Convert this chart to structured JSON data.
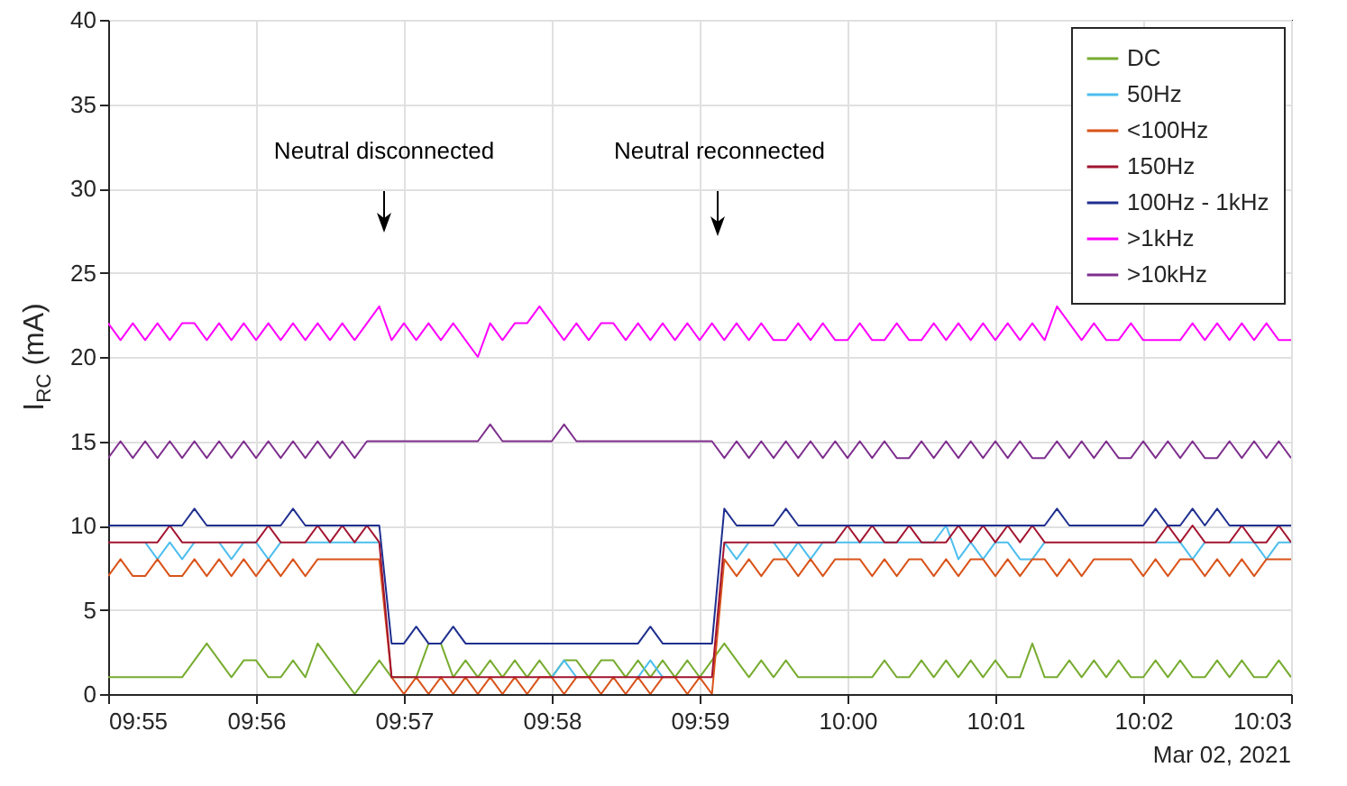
{
  "chart_data": {
    "type": "line",
    "ylabel": "I$_{RC}$ (mA)",
    "x": [
      "2021-03-02T09:55:00",
      "2021-03-02T09:55:05",
      "2021-03-02T09:55:10",
      "2021-03-02T09:55:15",
      "2021-03-02T09:55:20",
      "2021-03-02T09:55:25",
      "2021-03-02T09:55:30",
      "2021-03-02T09:55:35",
      "2021-03-02T09:55:40",
      "2021-03-02T09:55:45",
      "2021-03-02T09:55:50",
      "2021-03-02T09:55:55",
      "2021-03-02T09:56:00",
      "2021-03-02T09:56:05",
      "2021-03-02T09:56:10",
      "2021-03-02T09:56:15",
      "2021-03-02T09:56:20",
      "2021-03-02T09:56:25",
      "2021-03-02T09:56:30",
      "2021-03-02T09:56:35",
      "2021-03-02T09:56:40",
      "2021-03-02T09:56:45",
      "2021-03-02T09:56:50",
      "2021-03-02T09:56:55",
      "2021-03-02T09:57:00",
      "2021-03-02T09:57:05",
      "2021-03-02T09:57:10",
      "2021-03-02T09:57:15",
      "2021-03-02T09:57:20",
      "2021-03-02T09:57:25",
      "2021-03-02T09:57:30",
      "2021-03-02T09:57:35",
      "2021-03-02T09:57:40",
      "2021-03-02T09:57:45",
      "2021-03-02T09:57:50",
      "2021-03-02T09:57:55",
      "2021-03-02T09:58:00",
      "2021-03-02T09:58:05",
      "2021-03-02T09:58:10",
      "2021-03-02T09:58:15",
      "2021-03-02T09:58:20",
      "2021-03-02T09:58:25",
      "2021-03-02T09:58:30",
      "2021-03-02T09:58:35",
      "2021-03-02T09:58:40",
      "2021-03-02T09:58:45",
      "2021-03-02T09:58:50",
      "2021-03-02T09:58:55",
      "2021-03-02T09:59:00",
      "2021-03-02T09:59:05",
      "2021-03-02T09:59:10",
      "2021-03-02T09:59:15",
      "2021-03-02T09:59:20",
      "2021-03-02T09:59:25",
      "2021-03-02T09:59:30",
      "2021-03-02T09:59:35",
      "2021-03-02T09:59:40",
      "2021-03-02T09:59:45",
      "2021-03-02T09:59:50",
      "2021-03-02T09:59:55",
      "2021-03-02T10:00:00",
      "2021-03-02T10:00:05",
      "2021-03-02T10:00:10",
      "2021-03-02T10:00:15",
      "2021-03-02T10:00:20",
      "2021-03-02T10:00:25",
      "2021-03-02T10:00:30",
      "2021-03-02T10:00:35",
      "2021-03-02T10:00:40",
      "2021-03-02T10:00:45",
      "2021-03-02T10:00:50",
      "2021-03-02T10:00:55",
      "2021-03-02T10:01:00",
      "2021-03-02T10:01:05",
      "2021-03-02T10:01:10",
      "2021-03-02T10:01:15",
      "2021-03-02T10:01:20",
      "2021-03-02T10:01:25",
      "2021-03-02T10:01:30",
      "2021-03-02T10:01:35",
      "2021-03-02T10:01:40",
      "2021-03-02T10:01:45",
      "2021-03-02T10:01:50",
      "2021-03-02T10:01:55",
      "2021-03-02T10:02:00",
      "2021-03-02T10:02:05",
      "2021-03-02T10:02:10",
      "2021-03-02T10:02:15",
      "2021-03-02T10:02:20",
      "2021-03-02T10:02:25",
      "2021-03-02T10:02:30",
      "2021-03-02T10:02:35",
      "2021-03-02T10:02:40",
      "2021-03-02T10:02:45",
      "2021-03-02T10:02:50",
      "2021-03-02T10:02:55",
      "2021-03-02T10:03:00"
    ],
    "series": [
      {
        "name": "DC",
        "color": "#77ac30",
        "values": [
          1,
          1,
          1,
          1,
          1,
          1,
          1,
          2,
          3,
          2,
          1,
          2,
          2,
          1,
          1,
          2,
          1,
          3,
          2,
          1,
          0,
          1,
          2,
          1,
          1,
          1,
          3,
          3,
          1,
          2,
          1,
          2,
          1,
          2,
          1,
          2,
          1,
          2,
          2,
          1,
          2,
          2,
          1,
          2,
          1,
          2,
          1,
          2,
          1,
          2,
          3,
          2,
          1,
          2,
          1,
          2,
          1,
          1,
          1,
          1,
          1,
          1,
          1,
          2,
          1,
          1,
          2,
          1,
          2,
          1,
          2,
          1,
          2,
          1,
          1,
          3,
          1,
          1,
          2,
          1,
          2,
          1,
          2,
          1,
          1,
          2,
          1,
          2,
          1,
          1,
          2,
          1,
          2,
          1,
          1,
          2,
          1
        ]
      },
      {
        "name": "50Hz",
        "color": "#4dbeee",
        "values": [
          null,
          null,
          null,
          9,
          8,
          9,
          8,
          9,
          null,
          9,
          8,
          9,
          9,
          8,
          9,
          null,
          9,
          9,
          9,
          9,
          9,
          9,
          9,
          null,
          null,
          null,
          null,
          null,
          null,
          null,
          null,
          null,
          null,
          null,
          null,
          null,
          1,
          2,
          1,
          null,
          null,
          null,
          null,
          1,
          2,
          1,
          null,
          null,
          null,
          null,
          9,
          8,
          9,
          null,
          9,
          8,
          9,
          8,
          9,
          9,
          9,
          9,
          9,
          9,
          9,
          9,
          9,
          9,
          10,
          8,
          9,
          8,
          9,
          9,
          8,
          8,
          9,
          null,
          null,
          null,
          null,
          null,
          null,
          null,
          null,
          9,
          9,
          9,
          8,
          9,
          null,
          9,
          9,
          9,
          8,
          9,
          9
        ]
      },
      {
        "name": "<100Hz",
        "color": "#d95319",
        "values": [
          7,
          8,
          7,
          7,
          8,
          7,
          7,
          8,
          7,
          8,
          7,
          8,
          7,
          8,
          7,
          8,
          7,
          8,
          8,
          8,
          8,
          8,
          8,
          1,
          0,
          1,
          0,
          1,
          0,
          1,
          0,
          1,
          0,
          1,
          0,
          1,
          1,
          0,
          1,
          1,
          0,
          1,
          0,
          1,
          0,
          1,
          1,
          0,
          1,
          0,
          8,
          7,
          8,
          7,
          8,
          8,
          7,
          8,
          7,
          8,
          8,
          8,
          7,
          8,
          7,
          8,
          8,
          7,
          8,
          7,
          8,
          8,
          7,
          8,
          7,
          8,
          8,
          7,
          8,
          7,
          8,
          8,
          8,
          8,
          7,
          8,
          7,
          8,
          8,
          7,
          8,
          7,
          8,
          7,
          8,
          8,
          8
        ]
      },
      {
        "name": "150Hz",
        "color": "#a2142f",
        "values": [
          9,
          9,
          9,
          9,
          9,
          10,
          9,
          9,
          9,
          9,
          9,
          9,
          9,
          10,
          9,
          9,
          9,
          10,
          9,
          10,
          9,
          10,
          9,
          1,
          1,
          1,
          1,
          1,
          1,
          1,
          1,
          1,
          1,
          1,
          1,
          1,
          1,
          1,
          1,
          1,
          1,
          1,
          1,
          1,
          1,
          1,
          1,
          1,
          1,
          1,
          9,
          9,
          9,
          9,
          9,
          9,
          9,
          9,
          9,
          9,
          10,
          9,
          10,
          9,
          9,
          10,
          9,
          9,
          9,
          10,
          9,
          10,
          9,
          10,
          9,
          10,
          9,
          9,
          9,
          9,
          9,
          9,
          9,
          9,
          9,
          9,
          10,
          9,
          10,
          9,
          9,
          9,
          10,
          9,
          9,
          10,
          9
        ]
      },
      {
        "name": "100Hz - 1kHz",
        "color": "#1f2f8f",
        "values": [
          10,
          10,
          10,
          10,
          10,
          10,
          10,
          11,
          10,
          10,
          10,
          10,
          10,
          10,
          10,
          11,
          10,
          10,
          10,
          10,
          10,
          10,
          10,
          3,
          3,
          4,
          3,
          3,
          4,
          3,
          3,
          3,
          3,
          3,
          3,
          3,
          3,
          3,
          3,
          3,
          3,
          3,
          3,
          3,
          4,
          3,
          3,
          3,
          3,
          3,
          11,
          10,
          10,
          10,
          10,
          11,
          10,
          10,
          10,
          10,
          10,
          10,
          10,
          10,
          10,
          10,
          10,
          10,
          10,
          10,
          10,
          10,
          10,
          10,
          10,
          10,
          10,
          11,
          10,
          10,
          10,
          10,
          10,
          10,
          10,
          11,
          10,
          10,
          11,
          10,
          11,
          10,
          10,
          10,
          10,
          10,
          10
        ]
      },
      {
        "name": ">1kHz",
        "color": "#ff00ff",
        "values": [
          22,
          21,
          22,
          21,
          22,
          21,
          22,
          22,
          21,
          22,
          21,
          22,
          21,
          22,
          21,
          22,
          21,
          22,
          21,
          22,
          21,
          22,
          23,
          21,
          22,
          21,
          22,
          21,
          22,
          21,
          20,
          22,
          21,
          22,
          22,
          23,
          22,
          21,
          22,
          21,
          22,
          22,
          21,
          22,
          21,
          22,
          21,
          22,
          21,
          22,
          21,
          22,
          21,
          22,
          21,
          21,
          22,
          21,
          22,
          21,
          21,
          22,
          21,
          21,
          22,
          21,
          21,
          22,
          21,
          22,
          21,
          22,
          21,
          22,
          21,
          22,
          21,
          23,
          22,
          21,
          22,
          21,
          21,
          22,
          21,
          21,
          21,
          21,
          22,
          21,
          22,
          21,
          22,
          21,
          22,
          21,
          21
        ]
      },
      {
        "name": ">10kHz",
        "color": "#7e2f8e",
        "values": [
          14,
          15,
          14,
          15,
          14,
          15,
          14,
          15,
          14,
          15,
          14,
          15,
          14,
          15,
          14,
          15,
          14,
          15,
          14,
          15,
          14,
          15,
          15,
          15,
          15,
          15,
          15,
          15,
          15,
          15,
          15,
          16,
          15,
          15,
          15,
          15,
          15,
          16,
          15,
          15,
          15,
          15,
          15,
          15,
          15,
          15,
          15,
          15,
          15,
          15,
          14,
          15,
          14,
          15,
          14,
          15,
          14,
          15,
          14,
          15,
          14,
          15,
          14,
          15,
          14,
          14,
          15,
          14,
          15,
          14,
          15,
          14,
          15,
          14,
          15,
          14,
          14,
          15,
          14,
          15,
          14,
          15,
          14,
          14,
          15,
          14,
          15,
          14,
          15,
          14,
          14,
          15,
          14,
          15,
          14,
          15,
          14
        ]
      }
    ],
    "xlim": [
      "2021-03-02T09:55",
      "2021-03-02T10:03"
    ],
    "xticks": [
      {
        "value": "2021-03-02T09:55",
        "label": "09:55"
      },
      {
        "value": "2021-03-02T09:56",
        "label": "09:56"
      },
      {
        "value": "2021-03-02T09:57",
        "label": "09:57"
      },
      {
        "value": "2021-03-02T09:58",
        "label": "09:58"
      },
      {
        "value": "2021-03-02T09:59",
        "label": "09:59"
      },
      {
        "value": "2021-03-02T10:00",
        "label": "10:00"
      },
      {
        "value": "2021-03-02T10:01",
        "label": "10:01"
      },
      {
        "value": "2021-03-02T10:02",
        "label": "10:02"
      },
      {
        "value": "2021-03-02T10:03",
        "label": "10:03"
      }
    ],
    "ylim": [
      0,
      40
    ],
    "yticks": [
      0,
      5,
      10,
      15,
      20,
      25,
      30,
      35,
      40
    ],
    "grid": true,
    "legend": "top right",
    "marker": "none",
    "line_style": "solid",
    "annotations": [
      "Neutral disconnected",
      "Neutral reconnected",
      "Mar 02, 2021"
    ]
  }
}
